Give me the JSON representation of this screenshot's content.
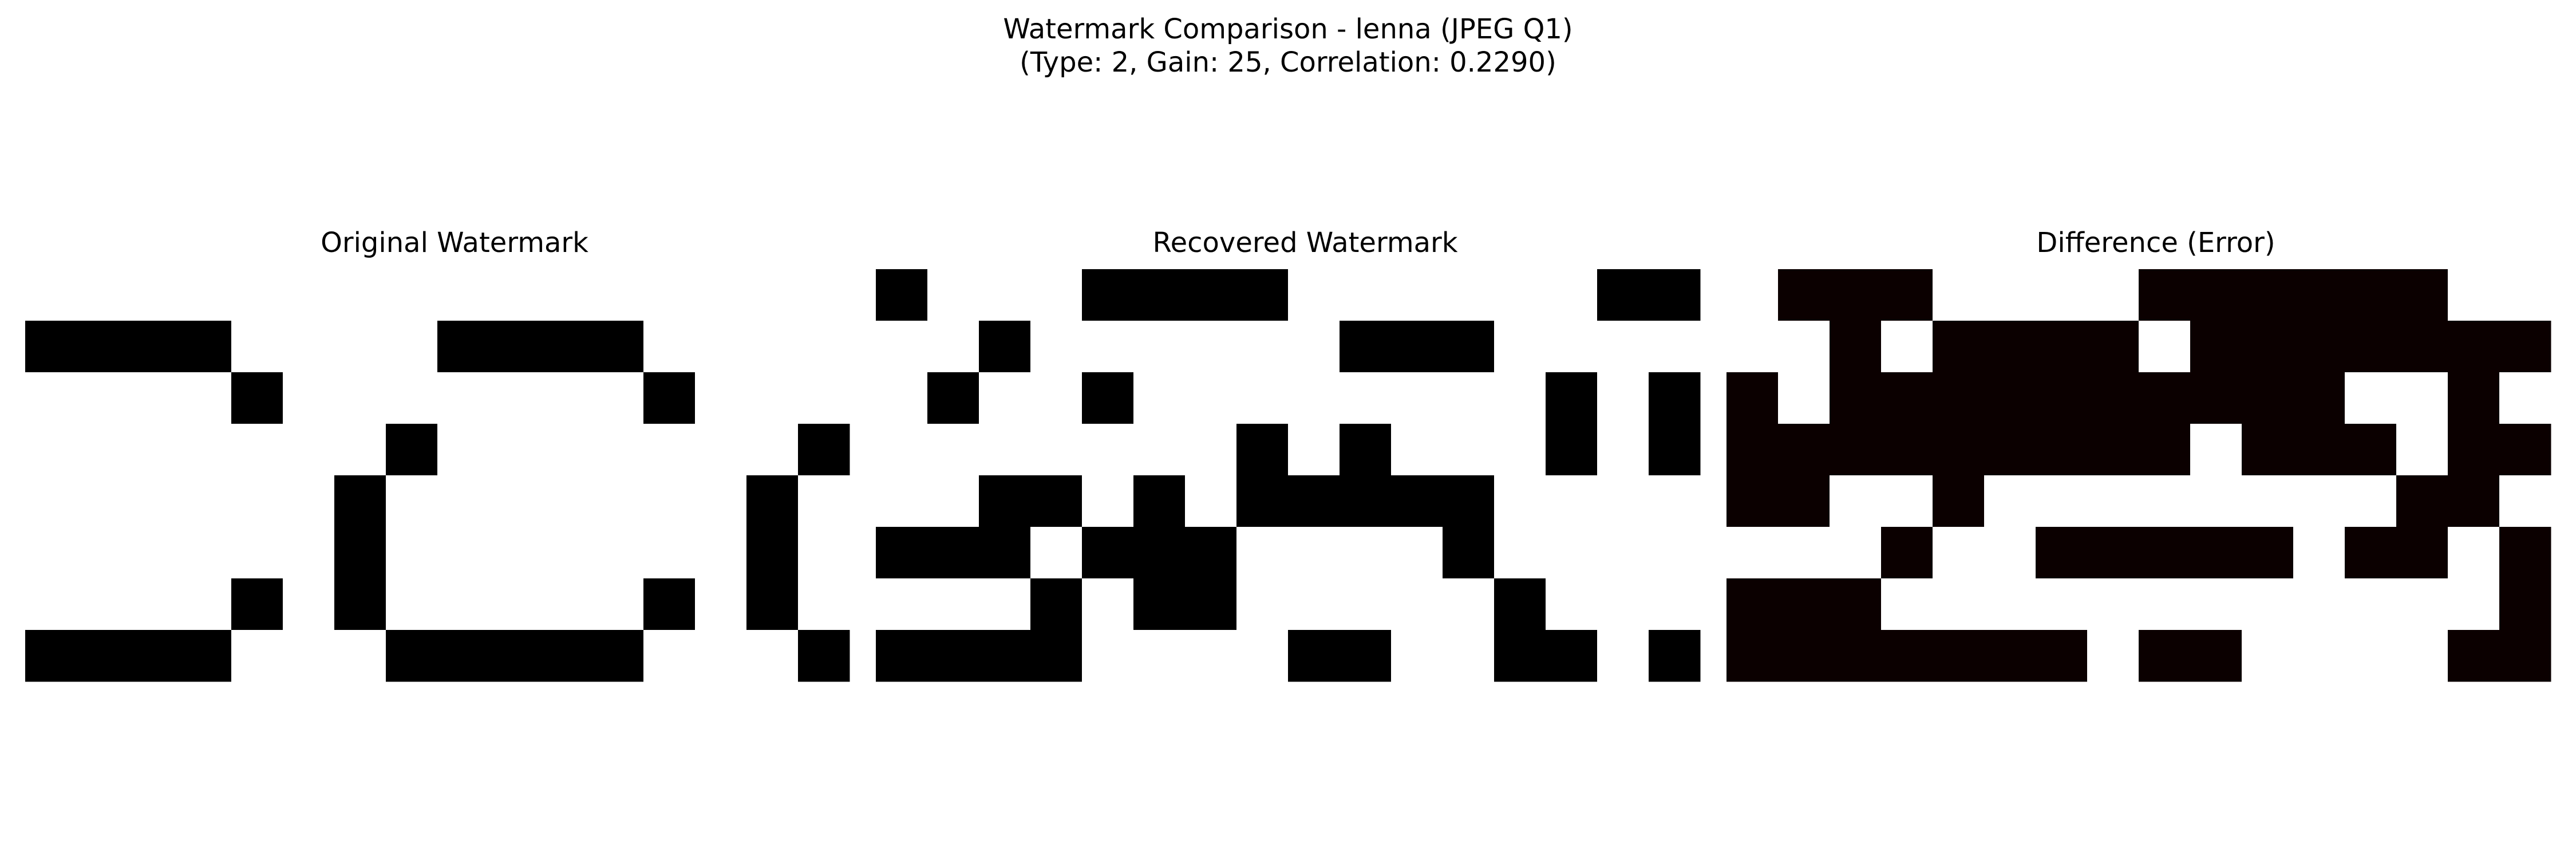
{
  "figure": {
    "title_line1": "Watermark Comparison - lenna (JPEG Q1)",
    "title_line2": "(Type: 2, Gain: 25, Correlation: 0.2290)"
  },
  "chart_data": [
    {
      "type": "heatmap",
      "title": "Original Watermark",
      "colormap": "gray",
      "colors": {
        "one": "#000000",
        "zero": "#ffffff"
      },
      "rows": 8,
      "cols": 16,
      "grid": false,
      "axes": "off",
      "matrix": [
        [
          0,
          0,
          0,
          0,
          0,
          0,
          0,
          0,
          0,
          0,
          0,
          0,
          0,
          0,
          0,
          0
        ],
        [
          1,
          1,
          1,
          1,
          0,
          0,
          0,
          0,
          1,
          1,
          1,
          1,
          0,
          0,
          0,
          0
        ],
        [
          0,
          0,
          0,
          0,
          1,
          0,
          0,
          0,
          0,
          0,
          0,
          0,
          1,
          0,
          0,
          0
        ],
        [
          0,
          0,
          0,
          0,
          0,
          0,
          0,
          1,
          0,
          0,
          0,
          0,
          0,
          0,
          0,
          1
        ],
        [
          0,
          0,
          0,
          0,
          0,
          0,
          1,
          0,
          0,
          0,
          0,
          0,
          0,
          0,
          1,
          0
        ],
        [
          0,
          0,
          0,
          0,
          0,
          0,
          1,
          0,
          0,
          0,
          0,
          0,
          0,
          0,
          1,
          0
        ],
        [
          0,
          0,
          0,
          0,
          1,
          0,
          1,
          0,
          0,
          0,
          0,
          0,
          1,
          0,
          1,
          0
        ],
        [
          1,
          1,
          1,
          1,
          0,
          0,
          0,
          1,
          1,
          1,
          1,
          1,
          0,
          0,
          0,
          1
        ]
      ]
    },
    {
      "type": "heatmap",
      "title": "Recovered Watermark",
      "colormap": "gray",
      "colors": {
        "one": "#000000",
        "zero": "#ffffff"
      },
      "rows": 8,
      "cols": 16,
      "grid": false,
      "axes": "off",
      "matrix": [
        [
          1,
          0,
          0,
          0,
          1,
          1,
          1,
          1,
          0,
          0,
          0,
          0,
          0,
          0,
          1,
          1
        ],
        [
          0,
          0,
          1,
          0,
          0,
          0,
          0,
          0,
          0,
          1,
          1,
          1,
          0,
          0,
          0,
          0
        ],
        [
          0,
          1,
          0,
          0,
          1,
          0,
          0,
          0,
          0,
          0,
          0,
          0,
          0,
          1,
          0,
          1
        ],
        [
          0,
          0,
          0,
          0,
          0,
          0,
          0,
          1,
          0,
          1,
          0,
          0,
          0,
          1,
          0,
          1
        ],
        [
          0,
          0,
          1,
          1,
          0,
          1,
          0,
          1,
          1,
          1,
          1,
          1,
          0,
          0,
          0,
          0
        ],
        [
          1,
          1,
          1,
          0,
          1,
          1,
          1,
          0,
          0,
          0,
          0,
          1,
          0,
          0,
          0,
          0
        ],
        [
          0,
          0,
          0,
          1,
          0,
          1,
          1,
          0,
          0,
          0,
          0,
          0,
          1,
          0,
          0,
          0
        ],
        [
          1,
          1,
          1,
          1,
          0,
          0,
          0,
          0,
          1,
          1,
          0,
          0,
          1,
          1,
          0,
          1
        ]
      ]
    },
    {
      "type": "heatmap",
      "title": "Difference (Error)",
      "colormap": "hot",
      "colors": {
        "one": "#0b0000",
        "zero": "#ffffff"
      },
      "rows": 8,
      "cols": 16,
      "grid": false,
      "axes": "off",
      "matrix": [
        [
          0,
          1,
          1,
          1,
          0,
          0,
          0,
          0,
          1,
          1,
          1,
          1,
          1,
          1,
          0,
          0
        ],
        [
          0,
          0,
          1,
          0,
          1,
          1,
          1,
          1,
          0,
          1,
          1,
          1,
          1,
          1,
          1,
          1
        ],
        [
          1,
          0,
          1,
          1,
          1,
          1,
          1,
          1,
          1,
          1,
          1,
          1,
          0,
          0,
          1,
          0
        ],
        [
          1,
          1,
          1,
          1,
          1,
          1,
          1,
          1,
          1,
          0,
          1,
          1,
          1,
          0,
          1,
          1
        ],
        [
          1,
          1,
          0,
          0,
          1,
          0,
          0,
          0,
          0,
          0,
          0,
          0,
          0,
          1,
          1,
          0
        ],
        [
          0,
          0,
          0,
          1,
          0,
          0,
          1,
          1,
          1,
          1,
          1,
          0,
          1,
          1,
          0,
          1
        ],
        [
          1,
          1,
          1,
          0,
          0,
          0,
          0,
          0,
          0,
          0,
          0,
          0,
          0,
          0,
          0,
          1
        ],
        [
          1,
          1,
          1,
          1,
          1,
          1,
          1,
          0,
          1,
          1,
          0,
          0,
          0,
          0,
          1,
          1
        ]
      ]
    }
  ]
}
